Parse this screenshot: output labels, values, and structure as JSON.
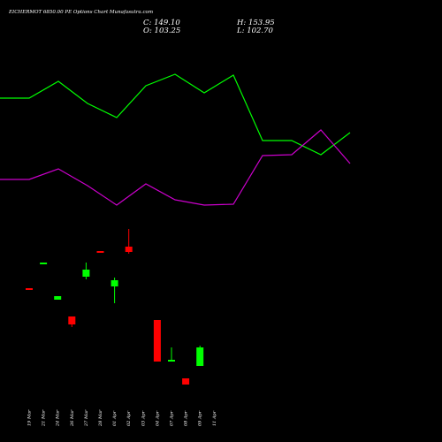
{
  "header": {
    "title": "EICHERMOT 6850.00 PE Options Chart Munafasutra.com",
    "close": "C: 149.10",
    "open": "O: 103.25",
    "high": "H: 153.95",
    "low": "L: 102.70"
  },
  "chart_data": {
    "type": "candlestick",
    "categories": [
      "19 Mar",
      "21 Mar",
      "24 Mar",
      "26 Mar",
      "27 Mar",
      "28 Mar",
      "01 Apr",
      "02 Apr",
      "03 Apr",
      "04 Apr",
      "07 Apr",
      "08 Apr",
      "09 Apr",
      "11 Apr"
    ],
    "candles": [
      {
        "date": "19 Mar",
        "y": [
          326,
          326,
          328,
          328
        ],
        "color": "red"
      },
      {
        "date": "21 Mar",
        "y": [
          299,
          297,
          297,
          299
        ],
        "color": "green"
      },
      {
        "date": "24 Mar",
        "y": [
          339,
          335,
          335,
          339
        ],
        "color": "green"
      },
      {
        "date": "26 Mar",
        "y": [
          358,
          358,
          367,
          370
        ],
        "color": "red"
      },
      {
        "date": "27 Mar",
        "y": [
          313,
          297,
          305,
          316
        ],
        "color": "green"
      },
      {
        "date": "28 Mar",
        "y": [
          284,
          284,
          285,
          285
        ],
        "color": "red"
      },
      {
        "date": "01 Apr",
        "y": [
          324,
          314,
          317,
          343
        ],
        "color": "green"
      },
      {
        "date": "02 Apr",
        "y": [
          279,
          259,
          285,
          287
        ],
        "color": "red"
      },
      {
        "date": "03 Apr",
        "y": null,
        "color": "none"
      },
      {
        "date": "04 Apr",
        "y": [
          362,
          362,
          409,
          409
        ],
        "color": "red"
      },
      {
        "date": "07 Apr",
        "y": [
          408,
          393,
          407,
          409
        ],
        "color": "green"
      },
      {
        "date": "08 Apr",
        "y": [
          428,
          428,
          435,
          435
        ],
        "color": "red"
      },
      {
        "date": "09 Apr",
        "y": [
          414,
          391,
          393,
          414
        ],
        "color": "green"
      },
      {
        "date": "11 Apr",
        "y": null,
        "color": "none"
      }
    ],
    "series": [
      {
        "color": "#00ff00",
        "values": [
          111,
          111,
          92,
          117,
          133,
          97,
          84,
          105,
          85,
          159,
          159,
          175,
          150,
          null
        ]
      },
      {
        "color": "#cc00cc",
        "values": [
          203,
          203,
          191,
          210,
          232,
          208,
          226,
          232,
          231,
          176,
          175,
          147,
          185,
          null
        ]
      }
    ]
  },
  "colors": {
    "background": "#000000",
    "up": "#00ff00",
    "down": "#ff0000",
    "ma_fast": "#00ff00",
    "ma_slow": "#cc00cc"
  }
}
